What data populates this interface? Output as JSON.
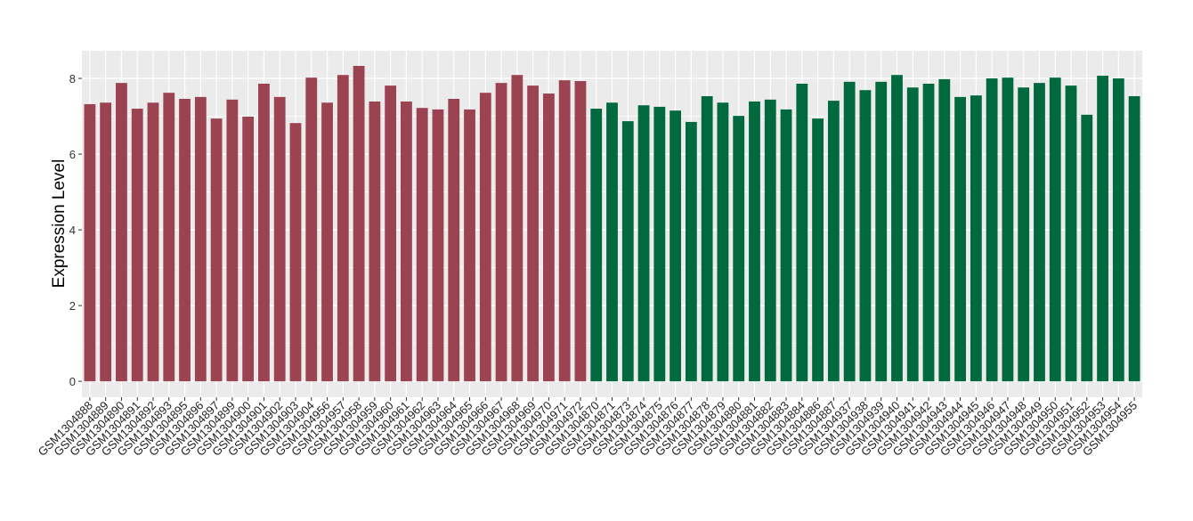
{
  "chart_data": {
    "type": "bar",
    "title": "",
    "xlabel": "",
    "ylabel": "Expression Level",
    "ylim": [
      -0.42,
      8.73
    ],
    "yticks": [
      0,
      2,
      4,
      6,
      8
    ],
    "grid": true,
    "legend": "none",
    "colors": {
      "group1": "#9b4350",
      "group2": "#00693e",
      "panel": "#ebebeb",
      "grid": "#ffffff"
    },
    "categories": [
      "GSM1304888",
      "GSM1304889",
      "GSM1304890",
      "GSM1304891",
      "GSM1304892",
      "GSM1304893",
      "GSM1304895",
      "GSM1304896",
      "GSM1304897",
      "GSM1304899",
      "GSM1304900",
      "GSM1304901",
      "GSM1304902",
      "GSM1304903",
      "GSM1304904",
      "GSM1304956",
      "GSM1304957",
      "GSM1304958",
      "GSM1304959",
      "GSM1304960",
      "GSM1304961",
      "GSM1304962",
      "GSM1304963",
      "GSM1304964",
      "GSM1304965",
      "GSM1304966",
      "GSM1304967",
      "GSM1304968",
      "GSM1304969",
      "GSM1304970",
      "GSM1304971",
      "GSM1304972",
      "GSM1304870",
      "GSM1304871",
      "GSM1304873",
      "GSM1304874",
      "GSM1304875",
      "GSM1304876",
      "GSM1304877",
      "GSM1304878",
      "GSM1304879",
      "GSM1304880",
      "GSM1304881",
      "GSM1304882",
      "GSM1304883",
      "GSM1304884",
      "GSM1304886",
      "GSM1304887",
      "GSM1304937",
      "GSM1304938",
      "GSM1304939",
      "GSM1304940",
      "GSM1304941",
      "GSM1304942",
      "GSM1304943",
      "GSM1304944",
      "GSM1304945",
      "GSM1304946",
      "GSM1304947",
      "GSM1304948",
      "GSM1304949",
      "GSM1304950",
      "GSM1304951",
      "GSM1304952",
      "GSM1304953",
      "GSM1304954",
      "GSM1304955"
    ],
    "values": [
      7.32,
      7.36,
      7.88,
      7.2,
      7.36,
      7.62,
      7.46,
      7.51,
      6.94,
      7.44,
      6.99,
      7.86,
      7.51,
      6.82,
      8.02,
      7.36,
      8.09,
      8.33,
      7.39,
      7.81,
      7.39,
      7.22,
      7.18,
      7.46,
      7.18,
      7.62,
      7.88,
      8.09,
      7.81,
      7.6,
      7.95,
      7.93,
      7.2,
      7.36,
      6.87,
      7.29,
      7.25,
      7.15,
      6.85,
      7.53,
      7.36,
      7.01,
      7.39,
      7.44,
      7.18,
      7.86,
      6.94,
      7.41,
      7.91,
      7.69,
      7.91,
      8.09,
      7.76,
      7.86,
      7.98,
      7.51,
      7.55,
      8.0,
      8.02,
      7.76,
      7.88,
      8.02,
      7.81,
      7.04,
      8.07,
      8.0,
      7.53
    ],
    "groups": [
      "group1",
      "group1",
      "group1",
      "group1",
      "group1",
      "group1",
      "group1",
      "group1",
      "group1",
      "group1",
      "group1",
      "group1",
      "group1",
      "group1",
      "group1",
      "group1",
      "group1",
      "group1",
      "group1",
      "group1",
      "group1",
      "group1",
      "group1",
      "group1",
      "group1",
      "group1",
      "group1",
      "group1",
      "group1",
      "group1",
      "group1",
      "group1",
      "group2",
      "group2",
      "group2",
      "group2",
      "group2",
      "group2",
      "group2",
      "group2",
      "group2",
      "group2",
      "group2",
      "group2",
      "group2",
      "group2",
      "group2",
      "group2",
      "group2",
      "group2",
      "group2",
      "group2",
      "group2",
      "group2",
      "group2",
      "group2",
      "group2",
      "group2",
      "group2",
      "group2",
      "group2",
      "group2",
      "group2",
      "group2",
      "group2",
      "group2",
      "group2"
    ]
  }
}
